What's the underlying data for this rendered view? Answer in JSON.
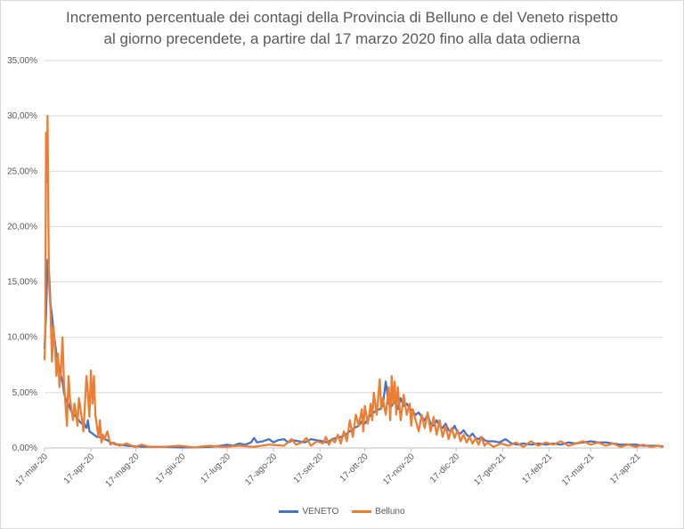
{
  "chart_data": {
    "type": "line",
    "title_lines": [
      "Incremento percentuale dei contagi della Provincia di Belluno e del  Veneto rispetto",
      "al giorno precendete, a partire dal 17 marzo 2020 fino alla data odierna"
    ],
    "xlabel": "",
    "ylabel": "",
    "ylim": [
      0,
      35
    ],
    "y_ticks": [
      {
        "value": 0,
        "label": "0,00%"
      },
      {
        "value": 5,
        "label": "5,00%"
      },
      {
        "value": 10,
        "label": "10,00%"
      },
      {
        "value": 15,
        "label": "15,00%"
      },
      {
        "value": 20,
        "label": "20,00%"
      },
      {
        "value": 25,
        "label": "25,00%"
      },
      {
        "value": 30,
        "label": "30,00%"
      },
      {
        "value": 35,
        "label": "35,00%"
      }
    ],
    "x_domain_days": [
      0,
      413
    ],
    "x_ticks": [
      {
        "day": 0,
        "label": "17-mar-20"
      },
      {
        "day": 31,
        "label": "17-apr-20"
      },
      {
        "day": 61,
        "label": "17-mag-20"
      },
      {
        "day": 92,
        "label": "17-giu-20"
      },
      {
        "day": 122,
        "label": "17-lug-20"
      },
      {
        "day": 153,
        "label": "17-ago-20"
      },
      {
        "day": 184,
        "label": "17-set-20"
      },
      {
        "day": 214,
        "label": "17-ott-20"
      },
      {
        "day": 245,
        "label": "17-nov-20"
      },
      {
        "day": 275,
        "label": "17-dic-20"
      },
      {
        "day": 306,
        "label": "17-gen-21"
      },
      {
        "day": 337,
        "label": "17-feb-21"
      },
      {
        "day": 365,
        "label": "17-mar-21"
      },
      {
        "day": 396,
        "label": "17-apr-21"
      }
    ],
    "grid": true,
    "legend_position": "bottom",
    "series": [
      {
        "name": "VENETO",
        "color": "#4472c4",
        "points": [
          [
            0,
            9.0
          ],
          [
            1,
            12.0
          ],
          [
            2,
            17.0
          ],
          [
            3,
            16.0
          ],
          [
            4,
            13.0
          ],
          [
            5,
            12.0
          ],
          [
            6,
            10.5
          ],
          [
            7,
            9.5
          ],
          [
            8,
            8.5
          ],
          [
            9,
            8.0
          ],
          [
            10,
            7.0
          ],
          [
            11,
            6.5
          ],
          [
            12,
            6.0
          ],
          [
            13,
            5.0
          ],
          [
            14,
            4.5
          ],
          [
            15,
            4.2
          ],
          [
            16,
            4.0
          ],
          [
            17,
            3.6
          ],
          [
            18,
            3.3
          ],
          [
            19,
            3.0
          ],
          [
            20,
            3.0
          ],
          [
            21,
            2.8
          ],
          [
            22,
            2.6
          ],
          [
            23,
            2.5
          ],
          [
            24,
            2.3
          ],
          [
            25,
            2.2
          ],
          [
            26,
            2.5
          ],
          [
            27,
            2.0
          ],
          [
            28,
            1.8
          ],
          [
            29,
            2.5
          ],
          [
            30,
            1.5
          ],
          [
            31,
            1.4
          ],
          [
            32,
            1.3
          ],
          [
            33,
            1.2
          ],
          [
            34,
            1.1
          ],
          [
            35,
            1.0
          ],
          [
            36,
            1.0
          ],
          [
            38,
            0.9
          ],
          [
            40,
            0.8
          ],
          [
            42,
            0.7
          ],
          [
            44,
            0.5
          ],
          [
            46,
            0.4
          ],
          [
            48,
            0.3
          ],
          [
            50,
            0.3
          ],
          [
            55,
            0.2
          ],
          [
            60,
            0.15
          ],
          [
            70,
            0.1
          ],
          [
            80,
            0.1
          ],
          [
            90,
            0.05
          ],
          [
            100,
            0.05
          ],
          [
            110,
            0.1
          ],
          [
            118,
            0.2
          ],
          [
            122,
            0.3
          ],
          [
            126,
            0.2
          ],
          [
            130,
            0.4
          ],
          [
            134,
            0.3
          ],
          [
            138,
            0.5
          ],
          [
            140,
            0.9
          ],
          [
            142,
            0.5
          ],
          [
            146,
            0.6
          ],
          [
            150,
            0.8
          ],
          [
            153,
            0.5
          ],
          [
            156,
            0.7
          ],
          [
            160,
            0.8
          ],
          [
            163,
            0.5
          ],
          [
            166,
            0.7
          ],
          [
            170,
            0.6
          ],
          [
            174,
            0.5
          ],
          [
            178,
            0.8
          ],
          [
            182,
            0.7
          ],
          [
            186,
            0.6
          ],
          [
            189,
            0.5
          ],
          [
            192,
            0.8
          ],
          [
            195,
            0.9
          ],
          [
            198,
            1.0
          ],
          [
            201,
            1.2
          ],
          [
            204,
            1.5
          ],
          [
            207,
            1.8
          ],
          [
            210,
            2.0
          ],
          [
            212,
            2.4
          ],
          [
            214,
            2.2
          ],
          [
            216,
            2.6
          ],
          [
            218,
            3.0
          ],
          [
            220,
            3.2
          ],
          [
            222,
            3.4
          ],
          [
            224,
            3.5
          ],
          [
            226,
            3.8
          ],
          [
            228,
            6.0
          ],
          [
            230,
            4.0
          ],
          [
            232,
            3.8
          ],
          [
            234,
            4.2
          ],
          [
            236,
            3.5
          ],
          [
            238,
            4.5
          ],
          [
            240,
            3.8
          ],
          [
            242,
            4.0
          ],
          [
            244,
            3.6
          ],
          [
            246,
            3.3
          ],
          [
            248,
            3.0
          ],
          [
            250,
            3.2
          ],
          [
            252,
            2.8
          ],
          [
            254,
            2.5
          ],
          [
            256,
            3.0
          ],
          [
            258,
            2.2
          ],
          [
            260,
            2.0
          ],
          [
            262,
            2.5
          ],
          [
            264,
            2.0
          ],
          [
            266,
            1.8
          ],
          [
            268,
            2.2
          ],
          [
            270,
            1.6
          ],
          [
            272,
            1.5
          ],
          [
            274,
            2.0
          ],
          [
            276,
            1.4
          ],
          [
            278,
            1.3
          ],
          [
            280,
            1.6
          ],
          [
            282,
            1.2
          ],
          [
            284,
            1.0
          ],
          [
            286,
            1.3
          ],
          [
            288,
            0.9
          ],
          [
            290,
            0.8
          ],
          [
            292,
            1.0
          ],
          [
            294,
            0.7
          ],
          [
            296,
            0.6
          ],
          [
            300,
            0.6
          ],
          [
            304,
            0.5
          ],
          [
            308,
            0.8
          ],
          [
            312,
            0.4
          ],
          [
            316,
            0.3
          ],
          [
            320,
            0.4
          ],
          [
            325,
            0.3
          ],
          [
            330,
            0.4
          ],
          [
            335,
            0.3
          ],
          [
            340,
            0.4
          ],
          [
            345,
            0.3
          ],
          [
            350,
            0.5
          ],
          [
            355,
            0.4
          ],
          [
            360,
            0.5
          ],
          [
            365,
            0.6
          ],
          [
            370,
            0.5
          ],
          [
            375,
            0.5
          ],
          [
            380,
            0.4
          ],
          [
            385,
            0.3
          ],
          [
            390,
            0.3
          ],
          [
            395,
            0.3
          ],
          [
            400,
            0.2
          ],
          [
            405,
            0.2
          ],
          [
            410,
            0.2
          ],
          [
            413,
            0.15
          ]
        ]
      },
      {
        "name": "Belluno",
        "color": "#ed7d31",
        "points": [
          [
            0,
            8.0
          ],
          [
            0.5,
            10.0
          ],
          [
            1,
            28.5
          ],
          [
            1.5,
            24.0
          ],
          [
            2,
            30.0
          ],
          [
            2.5,
            22.0
          ],
          [
            3,
            15.0
          ],
          [
            4,
            12.5
          ],
          [
            5,
            7.8
          ],
          [
            6,
            11.0
          ],
          [
            7,
            9.0
          ],
          [
            8,
            6.5
          ],
          [
            9,
            8.5
          ],
          [
            10,
            5.5
          ],
          [
            11,
            7.0
          ],
          [
            12,
            10.0
          ],
          [
            13,
            6.0
          ],
          [
            14,
            4.0
          ],
          [
            15,
            2.0
          ],
          [
            16,
            6.5
          ],
          [
            17,
            4.5
          ],
          [
            18,
            3.5
          ],
          [
            19,
            2.5
          ],
          [
            20,
            4.0
          ],
          [
            21,
            3.2
          ],
          [
            22,
            2.0
          ],
          [
            23,
            4.5
          ],
          [
            24,
            3.6
          ],
          [
            25,
            2.6
          ],
          [
            26,
            1.5
          ],
          [
            27,
            4.0
          ],
          [
            28,
            6.5
          ],
          [
            29,
            5.0
          ],
          [
            30,
            2.8
          ],
          [
            31,
            7.0
          ],
          [
            32,
            4.0
          ],
          [
            33,
            6.5
          ],
          [
            34,
            3.0
          ],
          [
            35,
            2.0
          ],
          [
            36,
            1.0
          ],
          [
            37,
            2.5
          ],
          [
            38,
            0.5
          ],
          [
            39,
            1.2
          ],
          [
            40,
            0.8
          ],
          [
            42,
            1.5
          ],
          [
            44,
            0.3
          ],
          [
            46,
            0.5
          ],
          [
            50,
            0.2
          ],
          [
            55,
            0.4
          ],
          [
            60,
            0.1
          ],
          [
            65,
            0.3
          ],
          [
            70,
            0.1
          ],
          [
            80,
            0.1
          ],
          [
            90,
            0.2
          ],
          [
            100,
            0.05
          ],
          [
            110,
            0.2
          ],
          [
            120,
            0.1
          ],
          [
            130,
            0.2
          ],
          [
            140,
            0.1
          ],
          [
            150,
            0.3
          ],
          [
            160,
            0.2
          ],
          [
            165,
            0.8
          ],
          [
            168,
            0.3
          ],
          [
            172,
            0.5
          ],
          [
            175,
            0.9
          ],
          [
            178,
            0.2
          ],
          [
            182,
            0.6
          ],
          [
            186,
            0.4
          ],
          [
            188,
            1.0
          ],
          [
            190,
            0.3
          ],
          [
            192,
            0.8
          ],
          [
            194,
            0.5
          ],
          [
            196,
            1.2
          ],
          [
            198,
            0.4
          ],
          [
            200,
            1.5
          ],
          [
            202,
            0.6
          ],
          [
            204,
            2.5
          ],
          [
            206,
            1.0
          ],
          [
            208,
            3.0
          ],
          [
            210,
            2.0
          ],
          [
            212,
            3.5
          ],
          [
            213,
            1.5
          ],
          [
            214,
            3.8
          ],
          [
            216,
            2.2
          ],
          [
            218,
            4.0
          ],
          [
            219,
            2.5
          ],
          [
            220,
            5.0
          ],
          [
            222,
            3.0
          ],
          [
            224,
            6.2
          ],
          [
            225,
            3.5
          ],
          [
            226,
            4.5
          ],
          [
            228,
            3.0
          ],
          [
            230,
            5.5
          ],
          [
            231,
            2.5
          ],
          [
            232,
            6.5
          ],
          [
            233,
            4.0
          ],
          [
            234,
            6.0
          ],
          [
            235,
            3.0
          ],
          [
            236,
            5.5
          ],
          [
            238,
            2.5
          ],
          [
            240,
            4.8
          ],
          [
            242,
            3.0
          ],
          [
            244,
            4.0
          ],
          [
            245,
            2.0
          ],
          [
            246,
            3.5
          ],
          [
            248,
            2.5
          ],
          [
            250,
            1.5
          ],
          [
            252,
            3.0
          ],
          [
            254,
            1.8
          ],
          [
            256,
            3.2
          ],
          [
            258,
            1.5
          ],
          [
            260,
            2.8
          ],
          [
            262,
            1.2
          ],
          [
            264,
            2.5
          ],
          [
            266,
            1.0
          ],
          [
            268,
            2.0
          ],
          [
            270,
            0.8
          ],
          [
            272,
            1.8
          ],
          [
            274,
            0.9
          ],
          [
            276,
            1.6
          ],
          [
            278,
            0.6
          ],
          [
            280,
            1.2
          ],
          [
            282,
            0.5
          ],
          [
            284,
            1.0
          ],
          [
            286,
            0.4
          ],
          [
            288,
            0.9
          ],
          [
            290,
            0.3
          ],
          [
            292,
            1.0
          ],
          [
            294,
            0.2
          ],
          [
            296,
            0.5
          ],
          [
            300,
            0.1
          ],
          [
            305,
            0.4
          ],
          [
            310,
            0.2
          ],
          [
            315,
            0.5
          ],
          [
            320,
            0.1
          ],
          [
            325,
            0.6
          ],
          [
            330,
            0.2
          ],
          [
            335,
            0.5
          ],
          [
            340,
            0.3
          ],
          [
            345,
            0.6
          ],
          [
            350,
            0.2
          ],
          [
            355,
            0.4
          ],
          [
            360,
            0.6
          ],
          [
            365,
            0.3
          ],
          [
            370,
            0.5
          ],
          [
            375,
            0.2
          ],
          [
            380,
            0.4
          ],
          [
            385,
            0.1
          ],
          [
            390,
            0.3
          ],
          [
            395,
            0.1
          ],
          [
            400,
            0.3
          ],
          [
            405,
            0.1
          ],
          [
            410,
            0.2
          ],
          [
            413,
            0.1
          ]
        ]
      }
    ]
  }
}
